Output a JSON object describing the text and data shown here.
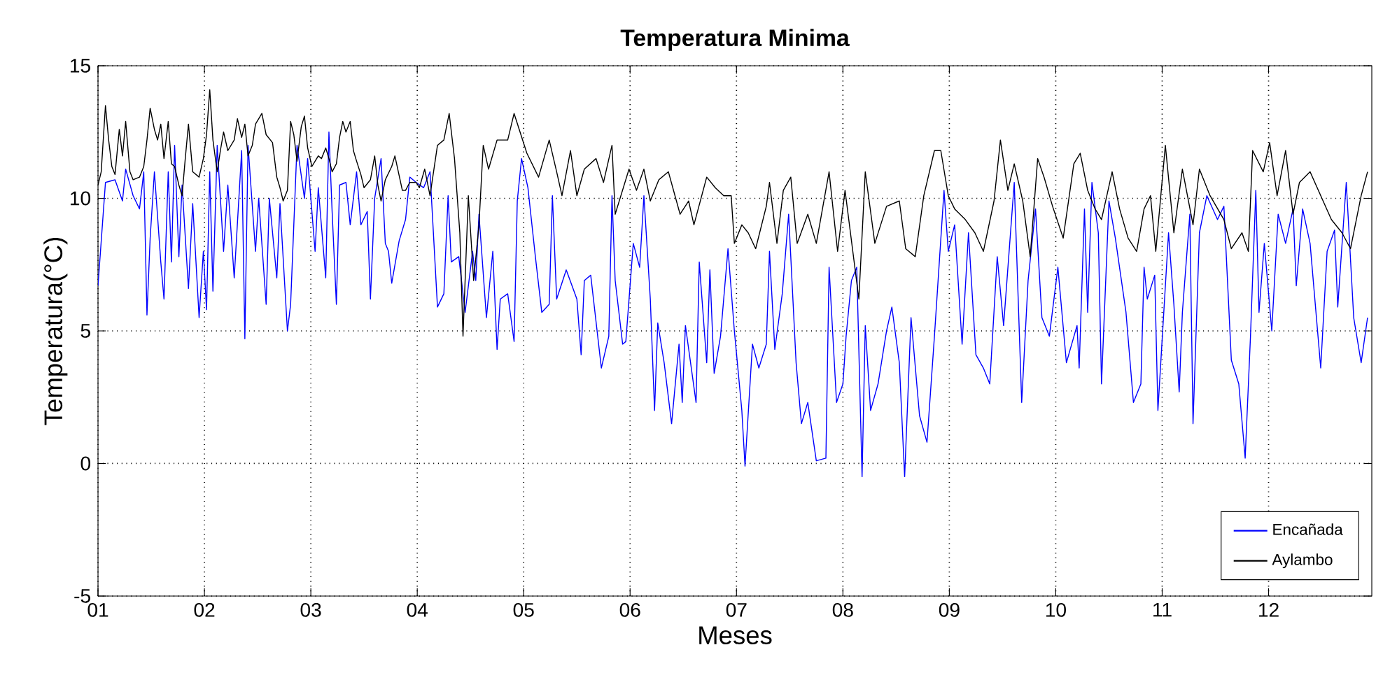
{
  "chart_data": {
    "type": "line",
    "title": "Temperatura Minima",
    "xlabel": "Meses",
    "ylabel": "Temperatura(°C)",
    "xlim": [
      1,
      12.97
    ],
    "ylim": [
      -5,
      15
    ],
    "yticks": [
      -5,
      0,
      5,
      10,
      15
    ],
    "xticks": [
      {
        "value": 1,
        "label": "01"
      },
      {
        "value": 2,
        "label": "02"
      },
      {
        "value": 3,
        "label": "03"
      },
      {
        "value": 4,
        "label": "04"
      },
      {
        "value": 5,
        "label": "05"
      },
      {
        "value": 6,
        "label": "06"
      },
      {
        "value": 7,
        "label": "07"
      },
      {
        "value": 8,
        "label": "08"
      },
      {
        "value": 9,
        "label": "09"
      },
      {
        "value": 10,
        "label": "10"
      },
      {
        "value": 11,
        "label": "11"
      },
      {
        "value": 12,
        "label": "12"
      }
    ],
    "grid": true,
    "legend": "bottom right",
    "series": [
      {
        "name": "Encañada",
        "color": "#0000ff",
        "x": [
          1.0,
          1.07,
          1.16,
          1.23,
          1.26,
          1.33,
          1.39,
          1.43,
          1.46,
          1.49,
          1.53,
          1.59,
          1.62,
          1.66,
          1.69,
          1.72,
          1.76,
          1.79,
          1.85,
          1.89,
          1.95,
          1.99,
          2.02,
          2.05,
          2.08,
          2.12,
          2.18,
          2.22,
          2.28,
          2.35,
          2.38,
          2.41,
          2.48,
          2.51,
          2.58,
          2.61,
          2.68,
          2.71,
          2.78,
          2.81,
          2.84,
          2.87,
          2.94,
          2.97,
          3.04,
          3.07,
          3.14,
          3.17,
          3.2,
          3.24,
          3.27,
          3.33,
          3.37,
          3.43,
          3.47,
          3.53,
          3.56,
          3.6,
          3.66,
          3.7,
          3.73,
          3.76,
          3.83,
          3.89,
          3.93,
          3.99,
          4.06,
          4.12,
          4.19,
          4.25,
          4.29,
          4.32,
          4.39,
          4.45,
          4.52,
          4.55,
          4.58,
          4.65,
          4.71,
          4.75,
          4.78,
          4.85,
          4.91,
          4.94,
          4.98,
          5.04,
          5.11,
          5.17,
          5.24,
          5.27,
          5.31,
          5.4,
          5.5,
          5.54,
          5.57,
          5.63,
          5.73,
          5.8,
          5.83,
          5.86,
          5.93,
          5.96,
          6.03,
          6.09,
          6.13,
          6.19,
          6.23,
          6.26,
          6.32,
          6.39,
          6.46,
          6.49,
          6.52,
          6.62,
          6.65,
          6.72,
          6.75,
          6.79,
          6.85,
          6.92,
          6.98,
          7.05,
          7.08,
          7.15,
          7.21,
          7.28,
          7.31,
          7.36,
          7.43,
          7.49,
          7.56,
          7.61,
          7.67,
          7.75,
          7.84,
          7.87,
          7.94,
          8.0,
          8.03,
          8.08,
          8.13,
          8.18,
          8.21,
          8.26,
          8.33,
          8.41,
          8.46,
          8.53,
          8.58,
          8.64,
          8.72,
          8.79,
          8.86,
          8.95,
          8.99,
          9.05,
          9.12,
          9.18,
          9.25,
          9.32,
          9.38,
          9.45,
          9.51,
          9.61,
          9.68,
          9.74,
          9.81,
          9.87,
          9.94,
          10.02,
          10.1,
          10.2,
          10.22,
          10.27,
          10.3,
          10.34,
          10.4,
          10.43,
          10.5,
          10.56,
          10.66,
          10.73,
          10.8,
          10.83,
          10.86,
          10.93,
          10.96,
          11.06,
          11.11,
          11.16,
          11.19,
          11.26,
          11.29,
          11.35,
          11.42,
          11.52,
          11.58,
          11.65,
          11.72,
          11.78,
          11.83,
          11.88,
          11.91,
          11.96,
          12.03,
          12.09,
          12.16,
          12.23,
          12.26,
          12.32,
          12.39,
          12.49,
          12.55,
          12.62,
          12.65,
          12.73,
          12.8,
          12.87,
          12.93
        ],
        "values": [
          6.7,
          10.6,
          10.7,
          9.9,
          11.1,
          10.1,
          9.6,
          11.0,
          5.6,
          8.5,
          11.0,
          7.6,
          6.2,
          11.0,
          7.6,
          12.0,
          7.8,
          10.5,
          6.6,
          9.8,
          5.5,
          8.0,
          5.8,
          11.0,
          6.5,
          12.0,
          8.0,
          10.5,
          7.0,
          11.8,
          4.7,
          12.0,
          8.0,
          10.0,
          6.0,
          10.0,
          7.0,
          9.8,
          5.0,
          6.0,
          9.0,
          12.0,
          10.0,
          11.5,
          8.0,
          10.4,
          7.0,
          12.5,
          9.5,
          6.0,
          10.5,
          10.6,
          9.0,
          11.0,
          9.0,
          9.5,
          6.2,
          10.0,
          11.5,
          8.3,
          8.0,
          6.8,
          8.4,
          9.2,
          10.8,
          10.6,
          10.4,
          11.0,
          5.9,
          6.4,
          10.1,
          7.6,
          7.8,
          5.7,
          8.0,
          6.9,
          9.4,
          5.5,
          8.0,
          4.3,
          6.2,
          6.4,
          4.6,
          9.9,
          11.5,
          10.4,
          7.8,
          5.7,
          6.0,
          10.1,
          6.2,
          7.3,
          6.2,
          4.1,
          6.9,
          7.1,
          3.6,
          4.8,
          10.1,
          6.9,
          4.5,
          4.6,
          8.3,
          7.4,
          10.1,
          6.2,
          2.0,
          5.3,
          3.8,
          1.5,
          4.5,
          2.3,
          5.2,
          2.3,
          7.6,
          3.8,
          7.3,
          3.4,
          4.8,
          8.1,
          5.0,
          2.0,
          -0.1,
          4.5,
          3.6,
          4.5,
          8.0,
          4.3,
          6.4,
          9.4,
          3.8,
          1.5,
          2.3,
          0.1,
          0.2,
          7.4,
          2.3,
          3.0,
          4.8,
          6.9,
          7.4,
          -0.5,
          5.2,
          2.0,
          3.0,
          5.0,
          5.9,
          3.8,
          -0.5,
          5.5,
          1.8,
          0.8,
          4.8,
          10.3,
          8.0,
          9.0,
          4.5,
          8.7,
          4.1,
          3.6,
          3.0,
          7.8,
          5.2,
          10.6,
          2.3,
          6.9,
          9.6,
          5.5,
          4.8,
          7.4,
          3.8,
          5.2,
          3.6,
          9.6,
          5.7,
          10.6,
          8.7,
          3.0,
          9.9,
          8.5,
          5.7,
          2.3,
          3.0,
          7.4,
          6.2,
          7.1,
          2.0,
          8.7,
          6.0,
          2.7,
          5.7,
          9.4,
          1.5,
          8.7,
          10.1,
          9.2,
          9.7,
          3.9,
          3.0,
          0.2,
          4.8,
          10.3,
          5.7,
          8.3,
          5.0,
          9.4,
          8.3,
          9.6,
          6.7,
          9.6,
          8.3,
          3.6,
          8.0,
          8.8,
          5.9,
          10.6,
          5.5,
          3.8,
          5.5
        ]
      },
      {
        "name": "Aylambo",
        "color": "#000000",
        "x": [
          1.0,
          1.03,
          1.07,
          1.1,
          1.13,
          1.16,
          1.2,
          1.23,
          1.26,
          1.3,
          1.33,
          1.39,
          1.43,
          1.46,
          1.49,
          1.53,
          1.56,
          1.59,
          1.62,
          1.66,
          1.69,
          1.72,
          1.76,
          1.79,
          1.82,
          1.85,
          1.89,
          1.95,
          1.99,
          2.02,
          2.05,
          2.08,
          2.12,
          2.15,
          2.18,
          2.22,
          2.28,
          2.31,
          2.35,
          2.38,
          2.41,
          2.45,
          2.48,
          2.54,
          2.58,
          2.64,
          2.68,
          2.71,
          2.74,
          2.78,
          2.81,
          2.84,
          2.87,
          2.91,
          2.94,
          2.97,
          3.01,
          3.04,
          3.07,
          3.1,
          3.14,
          3.17,
          3.2,
          3.24,
          3.27,
          3.3,
          3.33,
          3.37,
          3.4,
          3.43,
          3.47,
          3.5,
          3.56,
          3.6,
          3.63,
          3.66,
          3.7,
          3.76,
          3.79,
          3.86,
          3.89,
          3.93,
          3.99,
          4.02,
          4.07,
          4.12,
          4.19,
          4.25,
          4.3,
          4.35,
          4.4,
          4.43,
          4.48,
          4.53,
          4.58,
          4.62,
          4.67,
          4.75,
          4.85,
          4.91,
          5.03,
          5.14,
          5.24,
          5.31,
          5.36,
          5.44,
          5.5,
          5.57,
          5.68,
          5.75,
          5.83,
          5.86,
          5.99,
          6.06,
          6.13,
          6.19,
          6.27,
          6.36,
          6.47,
          6.55,
          6.6,
          6.72,
          6.8,
          6.88,
          6.95,
          6.98,
          7.05,
          7.11,
          7.18,
          7.28,
          7.31,
          7.38,
          7.44,
          7.51,
          7.57,
          7.67,
          7.75,
          7.87,
          7.95,
          8.02,
          8.15,
          8.21,
          8.3,
          8.41,
          8.53,
          8.59,
          8.68,
          8.76,
          8.86,
          8.92,
          8.99,
          9.05,
          9.15,
          9.24,
          9.32,
          9.42,
          9.48,
          9.55,
          9.61,
          9.69,
          9.76,
          9.83,
          9.89,
          9.97,
          10.07,
          10.17,
          10.23,
          10.3,
          10.37,
          10.43,
          10.53,
          10.6,
          10.68,
          10.76,
          10.83,
          10.89,
          10.94,
          11.03,
          11.11,
          11.19,
          11.29,
          11.35,
          11.45,
          11.58,
          11.65,
          11.75,
          11.81,
          11.85,
          11.95,
          12.01,
          12.08,
          12.16,
          12.23,
          12.29,
          12.39,
          12.49,
          12.59,
          12.69,
          12.77,
          12.87,
          12.93
        ],
        "values": [
          10.5,
          11.0,
          13.5,
          12.2,
          11.2,
          10.9,
          12.6,
          11.6,
          12.9,
          11.0,
          10.7,
          10.8,
          11.2,
          12.2,
          13.4,
          12.6,
          12.2,
          12.8,
          11.5,
          12.9,
          11.3,
          11.2,
          10.5,
          10.1,
          11.5,
          12.8,
          11.0,
          10.8,
          11.5,
          12.4,
          14.1,
          12.2,
          11.0,
          11.8,
          12.5,
          11.8,
          12.2,
          13.0,
          12.3,
          12.8,
          11.6,
          12.0,
          12.8,
          13.2,
          12.4,
          12.1,
          10.8,
          10.4,
          9.9,
          10.3,
          12.9,
          12.4,
          11.4,
          12.7,
          13.1,
          11.9,
          11.2,
          11.4,
          11.6,
          11.5,
          11.9,
          11.5,
          11.0,
          11.3,
          12.3,
          12.9,
          12.5,
          12.9,
          11.8,
          11.4,
          10.9,
          10.4,
          10.7,
          11.6,
          10.5,
          9.9,
          10.7,
          11.2,
          11.6,
          10.3,
          10.3,
          10.6,
          10.6,
          10.4,
          11.1,
          10.1,
          12.0,
          12.2,
          13.2,
          11.5,
          8.7,
          4.8,
          10.1,
          6.9,
          9.0,
          12.0,
          11.1,
          12.2,
          12.2,
          13.2,
          11.7,
          10.8,
          12.2,
          11.0,
          10.1,
          11.8,
          10.1,
          11.1,
          11.5,
          10.6,
          12.0,
          9.4,
          11.1,
          10.3,
          11.1,
          9.9,
          10.7,
          11.0,
          9.4,
          9.9,
          9.0,
          10.8,
          10.4,
          10.1,
          10.1,
          8.3,
          9.0,
          8.7,
          8.1,
          9.7,
          10.6,
          8.3,
          10.3,
          10.8,
          8.3,
          9.4,
          8.3,
          11.0,
          8.0,
          10.3,
          6.2,
          11.0,
          8.3,
          9.7,
          9.9,
          8.1,
          7.8,
          10.1,
          11.8,
          11.8,
          10.1,
          9.6,
          9.2,
          8.7,
          8.0,
          9.9,
          12.2,
          10.3,
          11.3,
          9.9,
          7.8,
          11.5,
          10.8,
          9.7,
          8.5,
          11.3,
          11.7,
          10.3,
          9.6,
          9.2,
          11.0,
          9.6,
          8.5,
          8.0,
          9.6,
          10.1,
          8.0,
          12.0,
          8.7,
          11.1,
          9.0,
          11.1,
          10.1,
          9.2,
          8.1,
          8.7,
          8.0,
          11.8,
          11.0,
          12.1,
          10.1,
          11.8,
          9.4,
          10.6,
          11.0,
          10.1,
          9.2,
          8.7,
          8.1,
          10.1,
          11.0
        ]
      }
    ]
  }
}
